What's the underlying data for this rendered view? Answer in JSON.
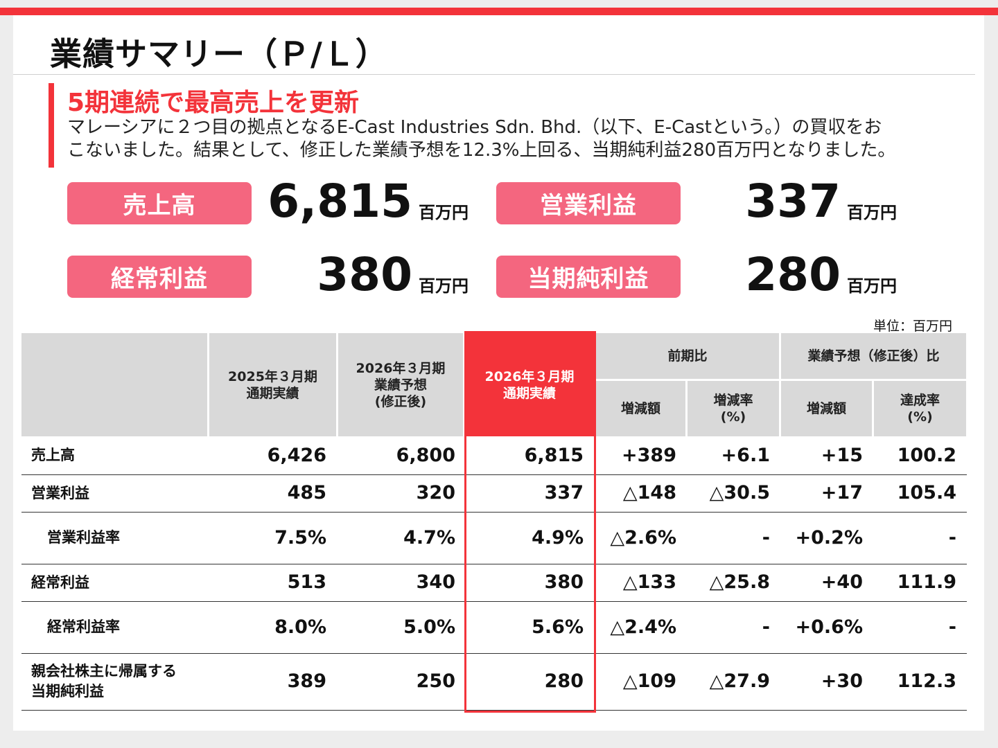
{
  "title": "業績サマリー（Ｐ/Ｌ）",
  "headline": "5期連続で最高売上を更新",
  "description": [
    "マレーシアに２つ目の拠点となるE-Cast Industries Sdn. Bhd.（以下、E-Castという。）の買収をお",
    "こないました。結果として、修正した業績予想を12.3%上回る、当期純利益280百万円となりました。"
  ],
  "kpis": [
    {
      "label": "売上高",
      "value": "6,815",
      "unit": "百万円"
    },
    {
      "label": "営業利益",
      "value": "337",
      "unit": "百万円"
    },
    {
      "label": "経常利益",
      "value": "380",
      "unit": "百万円"
    },
    {
      "label": "当期純利益",
      "value": "280",
      "unit": "百万円"
    }
  ],
  "table": {
    "unit_note": "単位：百万円",
    "headers": {
      "col1": "2025年３月期\n通期実績",
      "col2": "2026年３月期\n業績予想\n(修正後)",
      "col3": "2026年３月期\n通期実績",
      "group1": "前期比",
      "group2": "業績予想（修正後）比",
      "sub1": "増減額",
      "sub2": "増減率\n(%)",
      "sub3": "増減額",
      "sub4": "達成率\n(%)"
    },
    "rows": [
      {
        "label": "売上高",
        "indent": false,
        "values": [
          "6,426",
          "6,800",
          "6,815",
          "+389",
          "+6.1",
          "+15",
          "100.2"
        ]
      },
      {
        "label": "営業利益",
        "indent": false,
        "values": [
          "485",
          "320",
          "337",
          "△148",
          "△30.5",
          "+17",
          "105.4"
        ]
      },
      {
        "label": "営業利益率",
        "indent": true,
        "values": [
          "7.5%",
          "4.7%",
          "4.9%",
          "△2.6%",
          "-",
          "+0.2%",
          "-"
        ]
      },
      {
        "label": "経常利益",
        "indent": false,
        "values": [
          "513",
          "340",
          "380",
          "△133",
          "△25.8",
          "+40",
          "111.9"
        ]
      },
      {
        "label": "経常利益率",
        "indent": true,
        "values": [
          "8.0%",
          "5.0%",
          "5.6%",
          "△2.4%",
          "-",
          "+0.6%",
          "-"
        ]
      },
      {
        "label": "親会社株主に帰属する\n当期純利益",
        "indent": false,
        "values": [
          "389",
          "250",
          "280",
          "△109",
          "△27.9",
          "+30",
          "112.3"
        ]
      }
    ]
  },
  "colors": {
    "accent": "#f3333a",
    "kpi_label": "#f4667f",
    "header_gray": "#d9d9d9"
  }
}
